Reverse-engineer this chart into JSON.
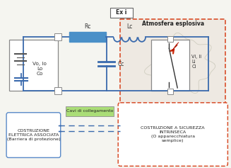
{
  "bg_color": "#f0ede8",
  "title_box_text": "Ex i",
  "atm_text": "Atmosfera esplosiva",
  "left_box_text": "Vo, Io\nLo\nCo",
  "label_Rc": "Rc",
  "label_Lc": "Lc",
  "label_Cc": "Cc",
  "vi_text": "Vi, Ii\nLi\nCi",
  "bottom_left_text": "COSTRUZIONE\nELETTRICA ASSOCIATA\n(Barriera di protezione)",
  "bottom_right_text": "COSTRUZIONE A SICUREZZA\nINTRINSECA\n(O apparecchiatura\nsemplice)",
  "cavi_text": "Cavi di collegamento",
  "wire_color": "#3a6aad",
  "resistor_color": "#4a90c8",
  "atm_border_color": "#d94f2b",
  "bottom_left_border": "#5a8ac8",
  "bottom_right_border": "#d94f2b",
  "cavi_bg": "#aadd77",
  "fig_bg": "#f5f5f0"
}
